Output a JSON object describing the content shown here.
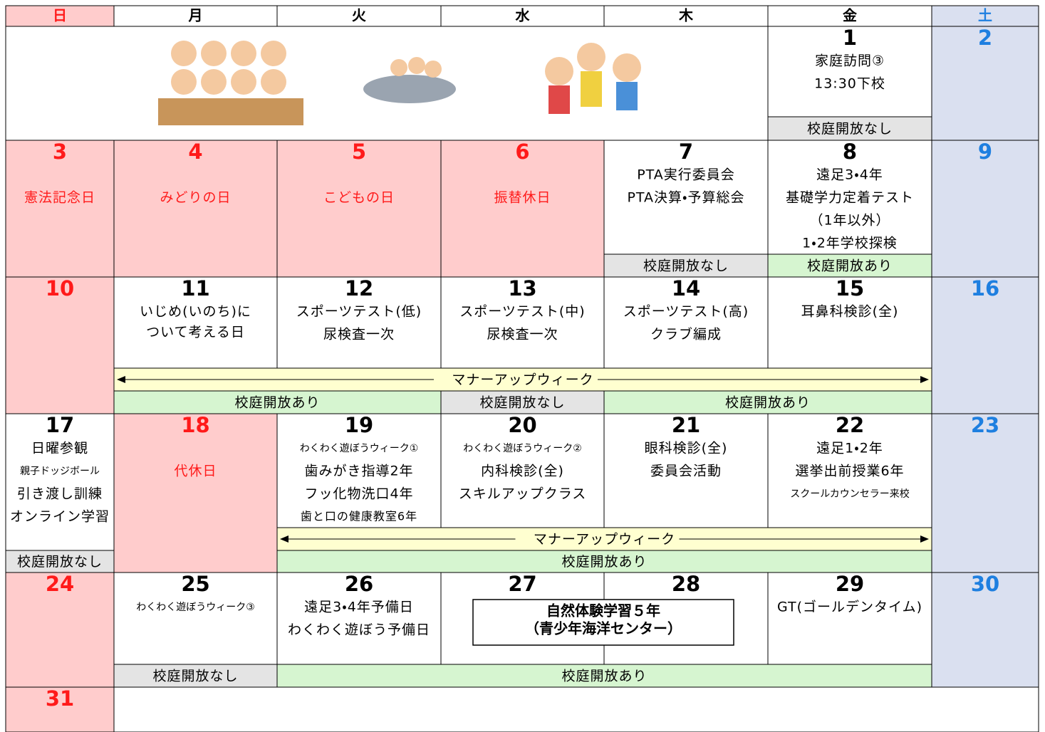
{
  "header": {
    "days": [
      "日",
      "月",
      "火",
      "水",
      "木",
      "金",
      "土"
    ]
  },
  "cells": [
    {
      "date": 1,
      "events": [
        "家庭訪問③",
        "13:30下校"
      ]
    },
    {
      "date": 2,
      "events": []
    },
    {
      "date": 3,
      "events": [
        "憲法記念日"
      ]
    },
    {
      "date": 4,
      "events": [
        "みどりの日"
      ]
    },
    {
      "date": 5,
      "events": [
        "こどもの日"
      ]
    },
    {
      "date": 6,
      "events": [
        "振替休日"
      ]
    },
    {
      "date": 7,
      "events": [
        "PTA実行委員会",
        "PTA決算・予算総会"
      ]
    },
    {
      "date": 8,
      "events": [
        "遠足3・4年",
        "基礎学力定着テスト",
        "（1年以外）",
        "1・2年学校探検"
      ]
    },
    {
      "date": 9,
      "events": []
    },
    {
      "date": 10,
      "events": []
    },
    {
      "date": 11,
      "events": [
        "いじめ(いのち)に",
        "ついて考える日"
      ]
    },
    {
      "date": 12,
      "events": [
        "スポーツテスト(低)",
        "尿検査一次"
      ]
    },
    {
      "date": 13,
      "events": [
        "スポーツテスト(中)",
        "尿検査一次"
      ]
    },
    {
      "date": 14,
      "events": [
        "スポーツテスト(高)",
        "クラブ編成"
      ]
    },
    {
      "date": 15,
      "events": [
        "耳鼻科検診(全)"
      ]
    },
    {
      "date": 16,
      "events": []
    },
    {
      "date": 17,
      "events": [
        "日曜参観",
        "親子ドッジボール",
        "引き渡し訓練",
        "オンライン学習"
      ]
    },
    {
      "date": 18,
      "events": [
        "代休日"
      ]
    },
    {
      "date": 19,
      "events": [
        "わくわく遊ぼうウィーク①",
        "歯みがき指導2年",
        "フッ化物洗口4年",
        "歯と口の健康教室6年"
      ]
    },
    {
      "date": 20,
      "events": [
        "わくわく遊ぼうウィーク②",
        "内科検診(全)",
        "スキルアップクラス"
      ]
    },
    {
      "date": 21,
      "events": [
        "眼科検診(全)",
        "委員会活動"
      ]
    },
    {
      "date": 22,
      "events": [
        "遠足1・2年",
        "選挙出前授業6年",
        "スクールカウンセラー来校"
      ]
    },
    {
      "date": 23,
      "events": []
    },
    {
      "date": 24,
      "events": []
    },
    {
      "date": 25,
      "events": [
        "わくわく遊ぼうウィーク③"
      ]
    },
    {
      "date": 26,
      "events": [
        "遠足3・4年予備日",
        "わくわく遊ぼう予備日"
      ]
    },
    {
      "date": 27,
      "events": []
    },
    {
      "date": 28,
      "events": []
    },
    {
      "date": 29,
      "events": [
        "GT(ゴールデンタイム)"
      ]
    },
    {
      "date": 30,
      "events": []
    },
    {
      "date": 31,
      "events": []
    }
  ],
  "bands": [
    "校庭開放なし",
    "校庭開放なし",
    "校庭開放あり",
    "マナーアップウィーク",
    "校庭開放あり",
    "校庭開放なし",
    "校庭開放あり",
    "校庭開放なし",
    "マナーアップウィーク",
    "校庭開放あり",
    "校庭開放なし",
    "校庭開放あり"
  ],
  "boxed_event": [
    "自然体験学習５年",
    "（青少年海洋センター）"
  ]
}
